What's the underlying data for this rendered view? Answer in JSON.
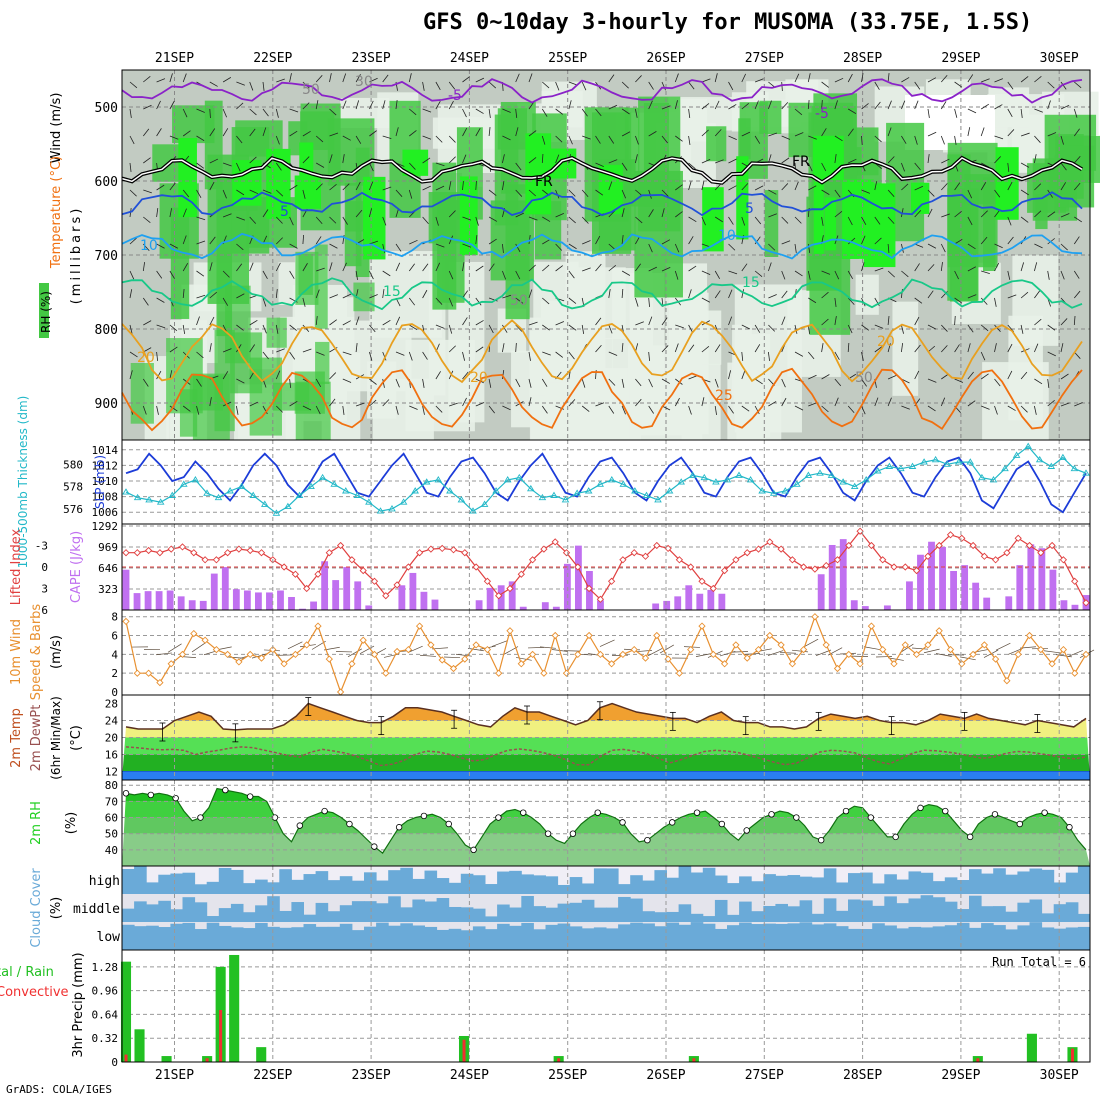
{
  "title": "GFS 0~10day 3-hourly for MUSOMA (33.75E, 1.5S)",
  "credit": "GrADS: COLA/IGES",
  "colors": {
    "rh_light": "#e8f1e8",
    "rh_mid": "#c2cbc2",
    "rh_green": "#43c843",
    "rh_bright": "#22f022",
    "temp_m5": "#8a22c8",
    "temp_0": "#000000",
    "temp_5": "#2050d8",
    "temp_10": "#1ea0f0",
    "temp_15": "#18c888",
    "temp_20": "#e8a020",
    "temp_25": "#f07010",
    "slp": "#1c3cd8",
    "thickness": "#22b8c8",
    "lifted": "#e04040",
    "cape": "#c070f0",
    "wind": "#e89030",
    "temp2m": "#f0a030",
    "dew2m": "#985050",
    "rh2m": "#22d022",
    "cloud": "#6aaad8",
    "precip_total": "#22c022",
    "precip_conv": "#f03030"
  },
  "chart_data": [
    {
      "type": "heatmap",
      "panel": "upper-air",
      "xlabel": "",
      "x_ticks": [
        "21SEP",
        "22SEP",
        "23SEP",
        "24SEP",
        "25SEP",
        "26SEP",
        "27SEP",
        "28SEP",
        "29SEP",
        "30SEP"
      ],
      "ylabel": "(millibars)",
      "y_ticks": [
        500,
        600,
        700,
        800,
        900
      ],
      "ylim": [
        950,
        450
      ],
      "legend_labels": [
        "Wind (m/s)",
        "Temperature (°C)",
        "RH (%)"
      ],
      "contour_labels": [
        "-5",
        "-5",
        "FR",
        "FR",
        "5",
        "5",
        "10",
        "10",
        "15",
        "15",
        "20",
        "20",
        "20",
        "25",
        "30",
        "50",
        "50",
        "50"
      ],
      "isotherms": [
        {
          "name": "-5",
          "level_mb": 478
        },
        {
          "name": "0",
          "level_mb": 585
        },
        {
          "name": "5",
          "level_mb": 630
        },
        {
          "name": "10",
          "level_mb": 688
        },
        {
          "name": "15",
          "level_mb": 752
        },
        {
          "name": "20",
          "level_mb": 830
        },
        {
          "name": "25",
          "level_mb": 895
        }
      ]
    },
    {
      "type": "line",
      "panel": "slp-thickness",
      "left_label": "1000-500mb Thickness (dm)",
      "right_label": "SLP (mb)",
      "left_ticks": [
        576,
        578,
        580
      ],
      "right_ticks": [
        1006,
        1008,
        1010,
        1012,
        1014
      ],
      "series": [
        {
          "name": "SLP (mb)",
          "values": [
            1011,
            1011.5,
            1013.5,
            1012,
            1010,
            1010.5,
            1012.5,
            1011,
            1009,
            1007.5,
            1009.5,
            1012,
            1013.5,
            1012,
            1009.5,
            1008,
            1010,
            1012.5,
            1013.5,
            1011,
            1008.5,
            1008,
            1010,
            1012,
            1013.5,
            1011,
            1008.5,
            1008,
            1010.5,
            1012.5,
            1013,
            1011,
            1008.5,
            1007.5,
            1010,
            1012,
            1013.5,
            1011,
            1008.5,
            1008,
            1010.5,
            1012.5,
            1013,
            1011,
            1008.5,
            1007.5,
            1010,
            1012,
            1013,
            1011,
            1008.5,
            1008,
            1010.5,
            1012.5,
            1013,
            1011,
            1008.5,
            1008,
            1010.5,
            1012.5,
            1013,
            1011,
            1008.5,
            1007.5,
            1010,
            1012,
            1013,
            1011,
            1008.5,
            1008,
            1010.5,
            1012.5,
            1013,
            1011,
            1007.5,
            1006.5,
            1009,
            1011.5,
            1012.5,
            1010,
            1007,
            1006,
            1008.5,
            1011
          ]
        },
        {
          "name": "1000-500mb Thickness (dm)",
          "values": [
            577.5,
            577,
            576.8,
            576.6,
            577.2,
            578.2,
            578.6,
            577.4,
            577,
            577.6,
            578,
            577.2,
            576.4,
            575.6,
            576.2,
            577.2,
            578,
            578.8,
            578.2,
            577.6,
            577.2,
            576.6,
            575.8,
            576,
            576.6,
            577.6,
            578.4,
            578.6,
            577.6,
            576.8,
            575.8,
            576.4,
            577.6,
            578.6,
            578.8,
            577.8,
            577,
            577.2,
            576.8,
            577.4,
            577.6,
            578.2,
            578.6,
            578.2,
            577.6,
            577.2,
            576.8,
            577.6,
            578.4,
            579,
            578.8,
            578.4,
            578.6,
            579,
            578.6,
            577.6,
            577.4,
            577.6,
            578.2,
            579,
            579.2,
            579,
            578.4,
            578,
            578.6,
            579.4,
            579.8,
            579.6,
            579.8,
            580.2,
            580.4,
            580,
            580.2,
            580.2,
            578.8,
            578.6,
            579.6,
            580.8,
            581.6,
            580.4,
            579.8,
            580.6,
            579.6,
            579.2
          ]
        }
      ]
    },
    {
      "type": "bar",
      "panel": "cape-lifted",
      "left_label": "Lifted Index",
      "right_label": "CAPE (J/kg)",
      "left_ticks": [
        -3,
        0,
        3,
        6
      ],
      "right_ticks": [
        323,
        646,
        969,
        1292
      ],
      "series": [
        {
          "name": "CAPE (J/kg)",
          "values": [
            620,
            260,
            290,
            290,
            300,
            210,
            150,
            140,
            560,
            660,
            320,
            300,
            270,
            270,
            300,
            200,
            20,
            130,
            750,
            460,
            660,
            440,
            70,
            0,
            0,
            380,
            570,
            280,
            160,
            0,
            0,
            0,
            150,
            340,
            380,
            440,
            50,
            0,
            120,
            50,
            710,
            990,
            600,
            150,
            0,
            0,
            0,
            0,
            100,
            140,
            210,
            380,
            250,
            310,
            250,
            0,
            0,
            0,
            0,
            0,
            0,
            0,
            0,
            550,
            1000,
            1090,
            150,
            60,
            0,
            70,
            0,
            440,
            850,
            1050,
            970,
            600,
            690,
            420,
            190,
            0,
            210,
            690,
            1010,
            950,
            620,
            150,
            80,
            230
          ]
        },
        {
          "name": "Lifted Index",
          "values": [
            -2,
            -2,
            -2.3,
            -2,
            -2.5,
            -2.8,
            -2,
            -1,
            -1,
            -2,
            -2.5,
            -2.3,
            -2,
            -1,
            0,
            1,
            3,
            1,
            -2,
            -3,
            -1,
            0.5,
            2,
            4,
            2.5,
            0,
            -2,
            -2.5,
            -2.6,
            -2.4,
            -2,
            0,
            2,
            4,
            3,
            1,
            -1,
            -2.5,
            -3.5,
            -2,
            0,
            3,
            4.5,
            2,
            -1,
            -2,
            -1.5,
            -3,
            -2.6,
            -1,
            0,
            2,
            3,
            0.5,
            -1,
            -2,
            -2.5,
            -3.5,
            -2.5,
            -1,
            0,
            0.3,
            -0.2,
            -1,
            -3,
            -5,
            -3,
            -1,
            0,
            0,
            0.5,
            -1.5,
            -3,
            -4.5,
            -4,
            -3,
            -1.5,
            -1,
            -2,
            -4,
            -3,
            -2,
            -3,
            -1,
            2,
            5
          ]
        }
      ]
    },
    {
      "type": "line",
      "panel": "wind10m",
      "ylabel": "10m Wind Speed & Barbs (m/s)",
      "y_ticks": [
        0,
        2,
        4,
        6,
        8
      ],
      "ylim": [
        0,
        8
      ],
      "series": [
        {
          "name": "10m Wind Speed",
          "values": [
            7.5,
            2,
            2,
            1,
            3,
            4,
            6.2,
            5.5,
            4.5,
            4,
            3.2,
            4,
            3.6,
            4.5,
            3,
            4,
            5,
            7,
            3.5,
            0,
            3,
            5.5,
            4,
            2,
            4.3,
            4.5,
            7,
            5,
            3.4,
            2.5,
            3.5,
            5,
            4.5,
            2,
            6.5,
            3,
            4,
            2,
            6,
            2,
            4,
            6,
            4,
            3,
            4,
            4.5,
            3.6,
            6,
            3.5,
            2,
            4.5,
            7,
            4,
            3,
            5,
            3.6,
            4.5,
            6,
            5,
            3,
            4.5,
            8,
            5,
            2.5,
            4,
            3,
            7,
            4.5,
            3,
            5,
            4,
            5,
            6.5,
            4.5,
            3,
            4,
            5,
            3.5,
            1.2,
            4,
            6,
            4.5,
            3,
            4.5,
            2,
            4
          ]
        }
      ]
    },
    {
      "type": "area",
      "panel": "temp2m",
      "ylabel": "2m Temp 2m DewPt (6hr Min/Max) (°C)",
      "y_ticks": [
        12,
        16,
        20,
        24,
        28
      ],
      "ylim": [
        10,
        30
      ],
      "series": [
        {
          "name": "2m Temp",
          "values": [
            22.5,
            22,
            22,
            22,
            24,
            25,
            26,
            25,
            22,
            21.8,
            22,
            22,
            22,
            23,
            25,
            28,
            27,
            26,
            25,
            24,
            23.5,
            23.5,
            25,
            27,
            27,
            26.5,
            26,
            25,
            24,
            23,
            22.5,
            25,
            27,
            26,
            26,
            25,
            24,
            23,
            24,
            27,
            28,
            27,
            26,
            25.5,
            25,
            24.5,
            24.5,
            23.5,
            25,
            26,
            24,
            23.5,
            23.5,
            22.5,
            22.5,
            22,
            22.5,
            24.5,
            25.5,
            25,
            24.5,
            25,
            24,
            23.5,
            23.5,
            23,
            24,
            25.5,
            25,
            24.5,
            25.5,
            24.5,
            24,
            23.5,
            23,
            24,
            23.5,
            23,
            22.5,
            24.5
          ]
        },
        {
          "name": "2m DewPt",
          "values": [
            17.8,
            17.6,
            17.3,
            17.1,
            17.2,
            17,
            16,
            16.6,
            17,
            17.5,
            17.8,
            17.6,
            17,
            16.4,
            15.8,
            15.4,
            16.6,
            17.2,
            16.8,
            16.3,
            15.5,
            14.5,
            13.4,
            13.7,
            14.6,
            16,
            16.8,
            16.6,
            16,
            15.2,
            14.5,
            14.8,
            16,
            17,
            17.3,
            17,
            16.5,
            15.8,
            14.8,
            13.6,
            13.6,
            15.5,
            17,
            17.2,
            16.8,
            16.2,
            15.2,
            14,
            14.8,
            15.8,
            16.7,
            17,
            16.8,
            16.4,
            15.7,
            15,
            14.2,
            13.6,
            14,
            15.3,
            16.6,
            17,
            16.8,
            16.4,
            15.3,
            14.3,
            13.8,
            15,
            16.3,
            17,
            16.9,
            16.6,
            16.2,
            15.6,
            15.1,
            15.4,
            16.2,
            16.7,
            16.6,
            16.2,
            15.8,
            15.3,
            15,
            15.4
          ]
        }
      ]
    },
    {
      "type": "area",
      "panel": "rh2m",
      "ylabel": "2m RH (%)",
      "y_ticks": [
        40,
        50,
        60,
        70,
        80
      ],
      "ylim": [
        30,
        80
      ],
      "series": [
        {
          "name": "2m RH",
          "values": [
            75,
            74,
            75,
            74,
            75,
            74,
            72,
            64,
            58,
            60,
            66,
            78,
            77,
            76,
            75,
            73,
            73,
            70,
            60,
            50,
            45,
            55,
            60,
            62,
            64,
            63,
            60,
            56,
            52,
            47,
            42,
            38,
            46,
            54,
            58,
            60,
            61,
            62,
            60,
            56,
            50,
            43,
            40,
            48,
            56,
            60,
            64,
            65,
            63,
            60,
            56,
            50,
            46,
            44,
            50,
            56,
            60,
            63,
            62,
            60,
            57,
            50,
            45,
            46,
            50,
            54,
            57,
            60,
            62,
            63,
            64,
            60,
            56,
            50,
            46,
            52,
            56,
            60,
            62,
            64,
            63,
            60,
            55,
            48,
            46,
            52,
            60,
            64,
            67,
            66,
            60,
            54,
            48,
            48,
            56,
            62,
            66,
            68,
            67,
            64,
            58,
            52,
            48,
            56,
            60,
            62,
            60,
            58,
            56,
            60,
            62,
            63,
            62,
            60,
            54,
            46,
            40
          ]
        }
      ]
    },
    {
      "type": "heatmap",
      "panel": "cloud-cover",
      "ylabel": "Cloud Cover (%)",
      "rows": [
        "high",
        "middle",
        "low"
      ]
    },
    {
      "type": "bar",
      "panel": "precip",
      "ylabel": "3hr Precip (mm)",
      "left_label": "Total / Rain Convective",
      "y_ticks": [
        0,
        0.32,
        0.64,
        0.96,
        1.28
      ],
      "ylim": [
        0,
        1.48
      ],
      "annotation": "Run Total = 6",
      "series": [
        {
          "name": "Total / Rain",
          "values": [
            1.35,
            0.44,
            0,
            0.08,
            0,
            0,
            0.08,
            1.28,
            1.44,
            0,
            0.2,
            0,
            0,
            0,
            0,
            0,
            0,
            0,
            0,
            0,
            0,
            0,
            0,
            0,
            0,
            0.35,
            0,
            0,
            0,
            0,
            0,
            0,
            0.08,
            0,
            0,
            0,
            0,
            0,
            0,
            0,
            0,
            0,
            0.08,
            0,
            0,
            0,
            0,
            0,
            0,
            0,
            0,
            0,
            0,
            0,
            0,
            0,
            0,
            0,
            0,
            0,
            0,
            0,
            0,
            0.08,
            0,
            0,
            0,
            0.38,
            0,
            0,
            0.2,
            0
          ]
        },
        {
          "name": "Convective",
          "values": [
            0.1,
            0,
            0,
            0,
            0,
            0,
            0.05,
            0.7,
            0,
            0,
            0,
            0,
            0,
            0,
            0,
            0,
            0,
            0,
            0,
            0,
            0,
            0,
            0,
            0,
            0,
            0.3,
            0,
            0,
            0,
            0,
            0,
            0,
            0.05,
            0,
            0,
            0,
            0,
            0,
            0,
            0,
            0,
            0,
            0.05,
            0,
            0,
            0,
            0,
            0,
            0,
            0,
            0,
            0,
            0,
            0,
            0,
            0,
            0,
            0,
            0,
            0,
            0,
            0,
            0,
            0.05,
            0,
            0,
            0,
            0,
            0,
            0,
            0.18,
            0
          ]
        }
      ]
    }
  ]
}
